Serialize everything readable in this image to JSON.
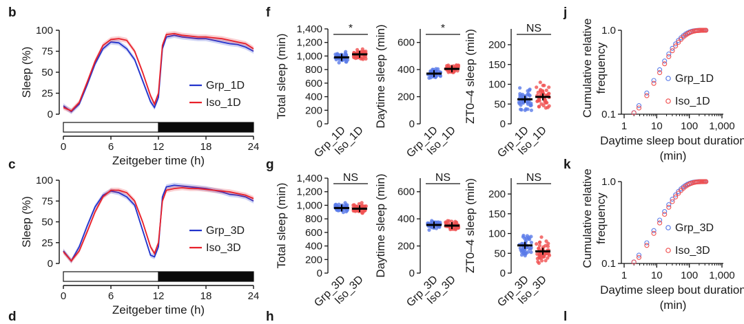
{
  "panels": {
    "b": "b",
    "c": "c",
    "d": "d",
    "f": "f",
    "g": "g",
    "h": "h",
    "j": "j",
    "k": "k",
    "l": "l"
  },
  "colors": {
    "grp": "#2233cc",
    "iso": "#e8202a",
    "grp_dot": "#5a7be8",
    "iso_dot": "#f05050"
  },
  "chart_data": [
    {
      "id": "b",
      "type": "line",
      "ylabel": "Sleep (%)",
      "xlabel": "Zeitgeber time (h)",
      "xlim": [
        0,
        24
      ],
      "ylim": [
        0,
        100
      ],
      "xticks": [
        "0",
        "6",
        "12",
        "18",
        "24"
      ],
      "yticks": [
        "0",
        "25",
        "50",
        "75",
        "100"
      ],
      "x": [
        0,
        1,
        2,
        3,
        4,
        5,
        6,
        7,
        8,
        9,
        10,
        11,
        11.5,
        12,
        12.5,
        13,
        14,
        15,
        16,
        17,
        18,
        19,
        20,
        21,
        22,
        23,
        24
      ],
      "series": [
        {
          "name": "Grp_1D",
          "values": [
            10,
            3,
            12,
            35,
            60,
            78,
            86,
            85,
            78,
            65,
            40,
            15,
            8,
            20,
            78,
            92,
            94,
            92,
            91,
            90,
            90,
            88,
            86,
            84,
            83,
            80,
            75
          ]
        },
        {
          "name": "Iso_1D",
          "values": [
            8,
            4,
            14,
            38,
            63,
            82,
            89,
            90,
            88,
            75,
            50,
            22,
            12,
            25,
            82,
            95,
            96,
            94,
            93,
            92,
            92,
            91,
            90,
            88,
            86,
            84,
            78
          ]
        }
      ],
      "light_bar": {
        "light": "0–12",
        "dark": "12–24"
      }
    },
    {
      "id": "c",
      "type": "line",
      "ylabel": "Sleep (%)",
      "xlabel": "Zeitgeber time (h)",
      "xlim": [
        0,
        24
      ],
      "ylim": [
        0,
        100
      ],
      "xticks": [
        "0",
        "6",
        "12",
        "18",
        "24"
      ],
      "yticks": [
        "0",
        "25",
        "50",
        "75",
        "100"
      ],
      "x": [
        0,
        1,
        2,
        3,
        4,
        5,
        6,
        7,
        8,
        9,
        10,
        11,
        11.5,
        12,
        12.5,
        13,
        14,
        15,
        16,
        17,
        18,
        19,
        20,
        21,
        22,
        23,
        24
      ],
      "series": [
        {
          "name": "Grp_3D",
          "values": [
            15,
            3,
            20,
            45,
            68,
            82,
            87,
            85,
            80,
            70,
            40,
            10,
            8,
            20,
            80,
            92,
            94,
            93,
            92,
            91,
            90,
            88,
            86,
            83,
            82,
            80,
            75
          ]
        },
        {
          "name": "Iso_3D",
          "values": [
            14,
            3,
            15,
            38,
            62,
            80,
            88,
            88,
            85,
            75,
            50,
            20,
            12,
            25,
            75,
            88,
            90,
            91,
            90,
            90,
            89,
            88,
            87,
            86,
            84,
            82,
            78
          ]
        }
      ],
      "light_bar": {
        "light": "0–12",
        "dark": "12–24"
      }
    },
    {
      "id": "f_total",
      "type": "scatter",
      "ylabel": "Total sleep (min)",
      "categories": [
        "Grp_1D",
        "Iso_1D"
      ],
      "ylim": [
        0,
        1400
      ],
      "yticks": [
        "0",
        "200",
        "400",
        "600",
        "800",
        "1,000",
        "1,200",
        "1,400"
      ],
      "means": [
        980,
        1025
      ],
      "significance": "*"
    },
    {
      "id": "f_day",
      "type": "scatter",
      "ylabel": "Daytime sleep (min)",
      "categories": [
        "Grp_1D",
        "Iso_1D"
      ],
      "ylim": [
        0,
        700
      ],
      "yticks": [
        "0",
        "200",
        "400",
        "600"
      ],
      "means": [
        370,
        405
      ],
      "significance": "*"
    },
    {
      "id": "f_zt",
      "type": "scatter",
      "ylabel": "ZT0–4 sleep (min)",
      "categories": [
        "Grp_1D",
        "Iso_1D"
      ],
      "ylim": [
        0,
        240
      ],
      "yticks": [
        "0",
        "50",
        "100",
        "150",
        "200"
      ],
      "means": [
        62,
        68
      ],
      "significance": "NS"
    },
    {
      "id": "g_total",
      "type": "scatter",
      "ylabel": "Total sleep (min)",
      "categories": [
        "Grp_3D",
        "Iso_3D"
      ],
      "ylim": [
        0,
        1400
      ],
      "yticks": [
        "0",
        "200",
        "400",
        "600",
        "800",
        "1,000",
        "1,200",
        "1,400"
      ],
      "means": [
        960,
        950
      ],
      "significance": "NS"
    },
    {
      "id": "g_day",
      "type": "scatter",
      "ylabel": "Daytime sleep (min)",
      "categories": [
        "Grp_3D",
        "Iso_3D"
      ],
      "ylim": [
        0,
        700
      ],
      "yticks": [
        "0",
        "200",
        "400",
        "600"
      ],
      "means": [
        355,
        350
      ],
      "significance": "NS"
    },
    {
      "id": "g_zt",
      "type": "scatter",
      "ylabel": "ZT0–4 sleep (min)",
      "categories": [
        "Grp_3D",
        "Iso_3D"
      ],
      "ylim": [
        0,
        240
      ],
      "yticks": [
        "0",
        "50",
        "100",
        "150",
        "200"
      ],
      "means": [
        70,
        55
      ],
      "significance": "NS"
    },
    {
      "id": "j",
      "type": "scatter",
      "ylabel": "Cumulative relative frequency",
      "xlabel": "Daytime sleep bout duration (min)",
      "xscale": "log",
      "yscale": "log",
      "xticks": [
        "1",
        "10",
        "100",
        "1,000"
      ],
      "yticks": [
        "0.1",
        "1.0"
      ],
      "series": [
        {
          "name": "Grp_1D"
        },
        {
          "name": "Iso_1D"
        }
      ]
    },
    {
      "id": "k",
      "type": "scatter",
      "ylabel": "Cumulative relative frequency",
      "xlabel": "Daytime sleep bout duration (min)",
      "xscale": "log",
      "yscale": "log",
      "xticks": [
        "1",
        "10",
        "100",
        "1,000"
      ],
      "yticks": [
        "0.1",
        "1.0"
      ],
      "series": [
        {
          "name": "Grp_3D"
        },
        {
          "name": "Iso_3D"
        }
      ]
    }
  ]
}
